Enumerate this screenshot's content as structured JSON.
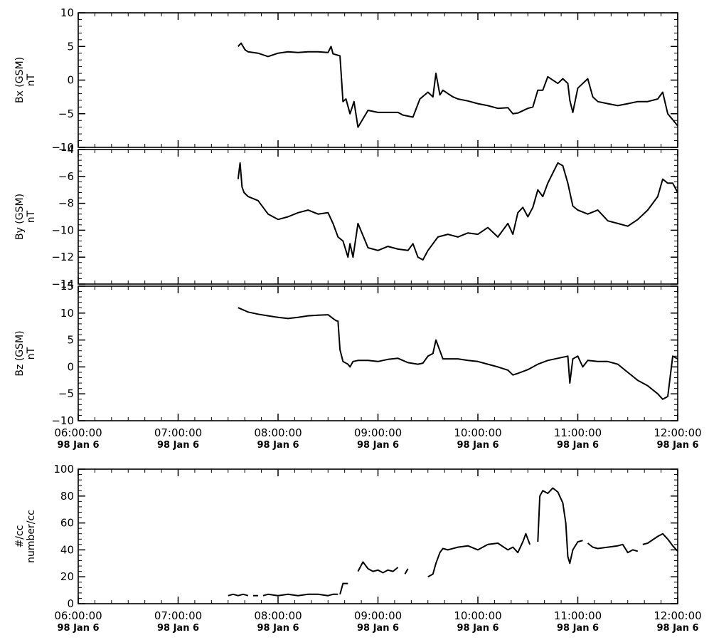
{
  "chart_data": [
    {
      "type": "line",
      "ylabel_lines": [
        "Bx (GSM)",
        "nT"
      ],
      "ylim": [
        -10,
        10
      ],
      "yticks": [
        10,
        5,
        0,
        -5,
        -10
      ],
      "yticks_labels": [
        "10",
        "5",
        "0",
        "−5",
        "−10"
      ],
      "xlim": [
        6.0,
        12.0
      ],
      "series": [
        {
          "x": [
            7.6,
            7.63,
            7.67,
            7.7,
            7.8,
            7.9,
            8.0,
            8.1,
            8.2,
            8.3,
            8.4,
            8.5,
            8.53,
            8.55,
            8.62,
            8.65,
            8.68,
            8.72,
            8.76,
            8.8,
            8.9,
            9.0,
            9.2,
            9.25,
            9.35,
            9.42,
            9.5,
            9.55,
            9.58,
            9.62,
            9.65,
            9.7,
            9.75,
            9.8,
            9.9,
            10.0,
            10.1,
            10.2,
            10.3,
            10.35,
            10.4,
            10.5,
            10.55,
            10.6,
            10.65,
            10.7,
            10.8,
            10.85,
            10.9,
            10.92,
            10.95,
            11.0,
            11.1,
            11.15,
            11.2,
            11.3,
            11.4,
            11.5,
            11.6,
            11.7,
            11.8,
            11.85,
            11.9,
            12.0
          ],
          "y": [
            5,
            5.5,
            4.5,
            4.2,
            4,
            3.5,
            4,
            4.2,
            4.1,
            4.2,
            4.2,
            4.1,
            5,
            3.9,
            3.6,
            -3.2,
            -2.8,
            -5,
            -3.2,
            -7,
            -4.5,
            -4.8,
            -4.8,
            -5.2,
            -5.5,
            -2.8,
            -1.8,
            -2.5,
            1,
            -2.2,
            -1.5,
            -2,
            -2.5,
            -2.8,
            -3.1,
            -3.5,
            -3.8,
            -4.2,
            -4.1,
            -5,
            -4.9,
            -4.2,
            -4,
            -1.5,
            -1.5,
            0.5,
            -0.5,
            0.2,
            -0.5,
            -3,
            -4.8,
            -1.2,
            0.2,
            -2.5,
            -3.2,
            -3.5,
            -3.8,
            -3.5,
            -3.2,
            -3.2,
            -2.8,
            -1.8,
            -5,
            -6.8
          ]
        }
      ]
    },
    {
      "type": "line",
      "ylabel_lines": [
        "By (GSM)",
        "nT"
      ],
      "ylim": [
        -14,
        -4
      ],
      "yticks": [
        -4,
        -6,
        -8,
        -10,
        -12,
        -14
      ],
      "yticks_labels": [
        "−4",
        "−6",
        "−8",
        "−10",
        "−12",
        "−14"
      ],
      "xlim": [
        6.0,
        12.0
      ],
      "series": [
        {
          "x": [
            7.6,
            7.62,
            7.64,
            7.66,
            7.7,
            7.8,
            7.9,
            8.0,
            8.1,
            8.2,
            8.3,
            8.4,
            8.5,
            8.55,
            8.6,
            8.65,
            8.7,
            8.72,
            8.75,
            8.8,
            8.9,
            9.0,
            9.1,
            9.2,
            9.3,
            9.35,
            9.4,
            9.45,
            9.5,
            9.6,
            9.7,
            9.8,
            9.9,
            10.0,
            10.1,
            10.2,
            10.3,
            10.35,
            10.4,
            10.45,
            10.5,
            10.55,
            10.6,
            10.65,
            10.7,
            10.8,
            10.85,
            10.9,
            10.95,
            11.0,
            11.1,
            11.2,
            11.3,
            11.4,
            11.5,
            11.6,
            11.7,
            11.8,
            11.85,
            11.9,
            11.95,
            12.0
          ],
          "y": [
            -6.2,
            -5,
            -6.8,
            -7.2,
            -7.5,
            -7.8,
            -8.8,
            -9.2,
            -9,
            -8.7,
            -8.5,
            -8.8,
            -8.7,
            -9.5,
            -10.5,
            -10.8,
            -12,
            -11,
            -12,
            -9.5,
            -11.3,
            -11.5,
            -11.2,
            -11.4,
            -11.5,
            -11,
            -12,
            -12.2,
            -11.5,
            -10.5,
            -10.3,
            -10.5,
            -10.2,
            -10.3,
            -9.8,
            -10.5,
            -9.5,
            -10.3,
            -8.7,
            -8.3,
            -9,
            -8.3,
            -7,
            -7.5,
            -6.5,
            -5,
            -5.2,
            -6.5,
            -8.2,
            -8.5,
            -8.8,
            -8.5,
            -9.3,
            -9.5,
            -9.7,
            -9.2,
            -8.5,
            -7.5,
            -6.2,
            -6.5,
            -6.5,
            -7.2
          ]
        }
      ]
    },
    {
      "type": "line",
      "ylabel_lines": [
        "Bz (GSM)",
        "nT"
      ],
      "ylim": [
        -10,
        15
      ],
      "yticks": [
        15,
        10,
        5,
        0,
        -5,
        -10
      ],
      "yticks_labels": [
        "15",
        "10",
        "5",
        "0",
        "−5",
        "−10"
      ],
      "xlim": [
        6.0,
        12.0
      ],
      "series": [
        {
          "x": [
            7.6,
            7.7,
            7.8,
            7.9,
            8.0,
            8.1,
            8.2,
            8.3,
            8.4,
            8.5,
            8.55,
            8.58,
            8.6,
            8.62,
            8.65,
            8.7,
            8.72,
            8.75,
            8.8,
            8.9,
            9.0,
            9.1,
            9.2,
            9.3,
            9.4,
            9.45,
            9.5,
            9.55,
            9.58,
            9.62,
            9.65,
            9.7,
            9.8,
            9.9,
            10.0,
            10.1,
            10.2,
            10.3,
            10.35,
            10.4,
            10.5,
            10.6,
            10.7,
            10.8,
            10.85,
            10.9,
            10.92,
            10.95,
            11.0,
            11.05,
            11.1,
            11.2,
            11.3,
            11.4,
            11.5,
            11.6,
            11.7,
            11.8,
            11.85,
            11.9,
            11.95,
            12.0
          ],
          "y": [
            11,
            10.2,
            9.8,
            9.5,
            9.2,
            9,
            9.2,
            9.5,
            9.6,
            9.7,
            9,
            8.6,
            8.5,
            3.2,
            1,
            0.5,
            0,
            1,
            1.2,
            1.2,
            1,
            1.4,
            1.6,
            0.8,
            0.5,
            0.7,
            2,
            2.5,
            5,
            3,
            1.5,
            1.5,
            1.5,
            1.2,
            1,
            0.5,
            0,
            -0.6,
            -1.5,
            -1.2,
            -0.5,
            0.5,
            1.2,
            1.6,
            1.8,
            2,
            -3,
            1.5,
            2,
            0,
            1.2,
            1,
            1,
            0.5,
            -1,
            -2.5,
            -3.5,
            -5,
            -6,
            -5.5,
            2,
            1.5
          ]
        }
      ]
    },
    {
      "type": "line",
      "ylabel_lines": [
        "#/cc",
        "number/cc"
      ],
      "ylim": [
        0,
        100
      ],
      "yticks": [
        100,
        80,
        60,
        40,
        20,
        0
      ],
      "yticks_labels": [
        "100",
        "80",
        "60",
        "40",
        "20",
        "0"
      ],
      "xlim": [
        6.0,
        12.0
      ],
      "series": [
        {
          "x": [
            7.5,
            7.55,
            7.6,
            7.65,
            7.7
          ],
          "y": [
            6,
            7,
            6,
            7,
            6
          ]
        },
        {
          "x": [
            7.75,
            7.8
          ],
          "y": [
            6,
            6
          ]
        },
        {
          "x": [
            7.85,
            7.9,
            8.0,
            8.1,
            8.2,
            8.3,
            8.4,
            8.5,
            8.55,
            8.6
          ],
          "y": [
            6,
            7,
            6,
            7,
            6,
            7,
            7,
            6,
            7,
            7
          ]
        },
        {
          "x": [
            8.62,
            8.65,
            8.7
          ],
          "y": [
            7,
            15,
            15
          ]
        },
        {
          "x": [
            8.8,
            8.85,
            8.9,
            8.95,
            9.0,
            9.05,
            9.1,
            9.15,
            9.2
          ],
          "y": [
            24,
            31,
            26,
            24,
            25,
            23,
            25,
            24,
            27
          ]
        },
        {
          "x": [
            9.27,
            9.3
          ],
          "y": [
            22,
            26
          ]
        },
        {
          "x": [
            9.5,
            9.55,
            9.58,
            9.62,
            9.65,
            9.7,
            9.8,
            9.9,
            10.0,
            10.1,
            10.2,
            10.3,
            10.35,
            10.4,
            10.45,
            10.48,
            10.52
          ],
          "y": [
            20,
            22,
            30,
            38,
            41,
            40,
            42,
            43,
            40,
            44,
            45,
            40,
            42,
            38,
            46,
            52,
            44
          ]
        },
        {
          "x": [
            10.6,
            10.62,
            10.65,
            10.7,
            10.75,
            10.8,
            10.85,
            10.88,
            10.9,
            10.92,
            10.95,
            11.0,
            11.05
          ],
          "y": [
            46,
            80,
            84,
            82,
            86,
            83,
            75,
            60,
            35,
            30,
            40,
            46,
            47
          ]
        },
        {
          "x": [
            11.1,
            11.15,
            11.2,
            11.3,
            11.4,
            11.45,
            11.5,
            11.55,
            11.6
          ],
          "y": [
            45,
            42,
            41,
            42,
            43,
            44,
            38,
            40,
            39
          ]
        },
        {
          "x": [
            11.65,
            11.7,
            11.8,
            11.85,
            11.9,
            11.95,
            12.0
          ],
          "y": [
            44,
            45,
            50,
            52,
            48,
            43,
            39
          ]
        }
      ]
    }
  ],
  "x_tick_times": [
    "06:00:00",
    "07:00:00",
    "08:00:00",
    "09:00:00",
    "10:00:00",
    "11:00:00",
    "12:00:00"
  ],
  "x_tick_dates": [
    "98 Jan  6",
    "98 Jan  6",
    "98 Jan  6",
    "98 Jan  6",
    "98 Jan  6",
    "98 Jan  6",
    "98 Jan  6"
  ]
}
